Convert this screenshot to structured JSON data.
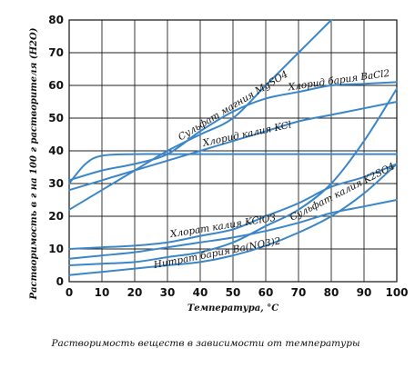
{
  "chart_data": {
    "type": "line",
    "xlabel": "Температура, °С",
    "ylabel": "Растворимость в г на 100 г растворителя (H2O)",
    "caption": "Растворимость веществ в зависимости от температуры",
    "xlim": [
      0,
      100
    ],
    "ylim": [
      0,
      80
    ],
    "xticks": [
      0,
      10,
      20,
      30,
      40,
      50,
      60,
      70,
      80,
      90,
      100
    ],
    "yticks": [
      0,
      10,
      20,
      30,
      40,
      50,
      60,
      70,
      80
    ],
    "grid": true,
    "line_color": "#3a86c8",
    "series": [
      {
        "name": "Сульфат магния MgSO4",
        "x": [
          0,
          10,
          20,
          30,
          40,
          50,
          60,
          70,
          80
        ],
        "y": [
          22,
          28,
          34,
          40,
          45,
          50,
          60,
          70,
          80
        ]
      },
      {
        "name": "Хлорид бария BaCl2",
        "x": [
          0,
          10,
          20,
          30,
          40,
          50,
          60,
          70,
          80,
          90,
          100
        ],
        "y": [
          31,
          34,
          36,
          39,
          46,
          52,
          56,
          58,
          60,
          60.5,
          61
        ]
      },
      {
        "name": "Хлорид калия KCl",
        "x": [
          0,
          10,
          20,
          30,
          40,
          50,
          60,
          70,
          80,
          90,
          100
        ],
        "y": [
          28,
          31,
          34,
          37,
          40,
          43,
          46,
          49,
          51,
          53,
          55
        ]
      },
      {
        "name": "",
        "x": [
          0,
          5,
          10,
          20,
          30,
          40,
          50,
          60,
          70,
          80,
          90,
          100
        ],
        "y": [
          30,
          36,
          38.5,
          39,
          39,
          39,
          39,
          39,
          39,
          39,
          39,
          39
        ]
      },
      {
        "name": "Хлорат калия KClO3",
        "x": [
          0,
          10,
          20,
          30,
          40,
          50,
          60,
          70,
          80,
          90,
          100
        ],
        "y": [
          10,
          10.5,
          11,
          12,
          14,
          16,
          20,
          24,
          29,
          32,
          36
        ]
      },
      {
        "name": "Сульфат калия K2SO4",
        "x": [
          0,
          10,
          20,
          30,
          40,
          50,
          60,
          70,
          80,
          90,
          100
        ],
        "y": [
          7,
          8,
          9,
          10.5,
          12,
          13.5,
          15.5,
          18,
          21,
          23,
          25
        ]
      },
      {
        "name": "Нитрат бария Ba(NO3)2",
        "x": [
          0,
          10,
          20,
          30,
          40,
          50,
          60,
          70,
          80,
          90,
          100
        ],
        "y": [
          5,
          5.5,
          6,
          7.5,
          9,
          12,
          17,
          22,
          30,
          43,
          59
        ]
      },
      {
        "name": "",
        "x": [
          0,
          10,
          20,
          30,
          40,
          50,
          60,
          70,
          80,
          90,
          100
        ],
        "y": [
          2,
          3,
          4,
          5,
          6,
          8,
          11,
          15,
          20,
          27,
          36
        ]
      }
    ]
  }
}
